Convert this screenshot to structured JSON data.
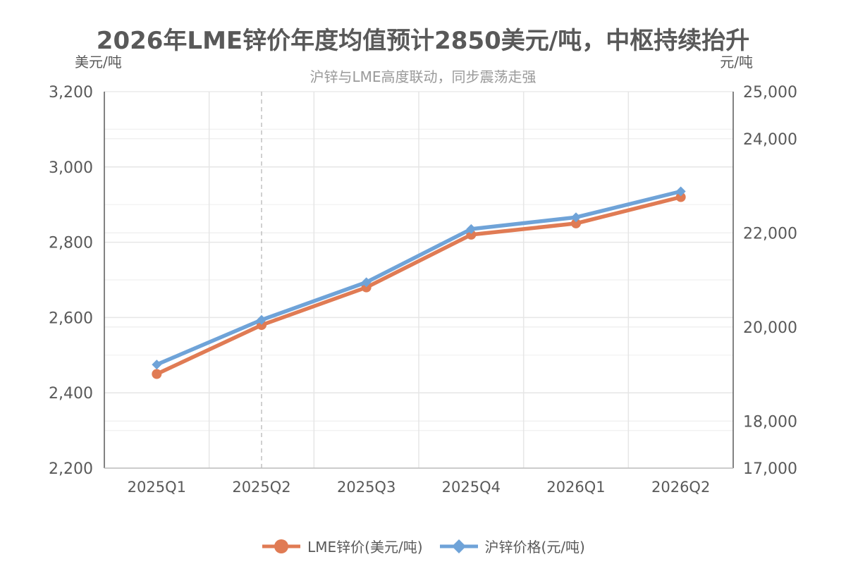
{
  "chart_data": {
    "type": "line",
    "title": "2026年LME锌价年度均值预计2850美元/吨，中枢持续抬升",
    "subtitle": "沪锌与LME高度联动，同步震荡走强",
    "left_axis_unit": "美元/吨",
    "right_axis_unit": "元/吨",
    "categories": [
      "2025Q1",
      "2025Q2",
      "2025Q3",
      "2025Q4",
      "2026Q1",
      "2026Q2"
    ],
    "left_axis": {
      "range": [
        2200,
        3200
      ],
      "ticks": [
        2200,
        2400,
        2600,
        2800,
        3000,
        3200
      ],
      "tick_labels": [
        "2,200",
        "2,400",
        "2,600",
        "2,800",
        "3,000",
        "3,200"
      ]
    },
    "right_axis": {
      "range": [
        17000,
        25000
      ],
      "ticks": [
        17000,
        18000,
        20000,
        22000,
        24000,
        25000
      ],
      "tick_labels": [
        "17,000",
        "18,000",
        "20,000",
        "22,000",
        "24,000",
        "25,000"
      ]
    },
    "grid": true,
    "highlight_category": "2025Q2",
    "legend_position": "bottom",
    "series": [
      {
        "name": "LME锌价(美元/吨)",
        "axis": "left",
        "color": "#e07b54",
        "marker": "circle",
        "values": [
          2450,
          2580,
          2680,
          2820,
          2850,
          2920
        ]
      },
      {
        "name": "沪锌价格(元/吨)",
        "axis": "right",
        "color": "#6fa3d8",
        "marker": "diamond",
        "values": [
          19200,
          20150,
          20950,
          22080,
          22330,
          22880
        ]
      }
    ]
  }
}
